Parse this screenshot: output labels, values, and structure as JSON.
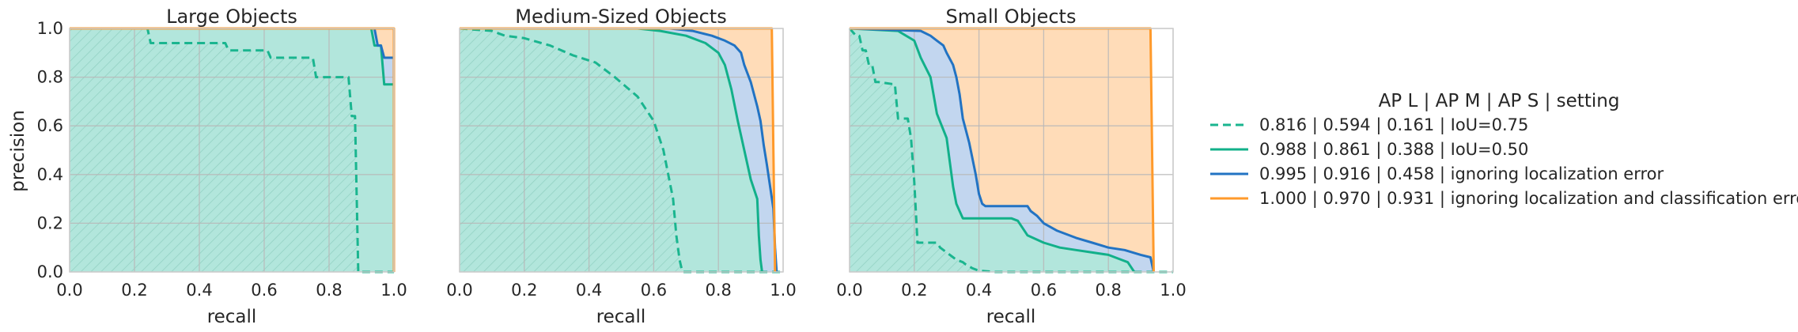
{
  "colors": {
    "iou75": "#1ab58f",
    "iou50": "#12b08a",
    "ign_loc": "#2273c3",
    "ign_loc_cls": "#ff9a2b",
    "fill_teal": "#b2e6dc",
    "fill_blue": "#c2d6ef",
    "fill_orange": "#ffdcb8",
    "hatch": "#8fcfc0",
    "grid": "#b8b8b8",
    "frame": "#cccccc",
    "text": "#262626"
  },
  "legend": {
    "title": "AP L | AP M | AP S | setting",
    "placement": "right",
    "entries": [
      {
        "label": "0.816 | 0.594 | 0.161 | IoU=0.75",
        "color": "#1ab58f",
        "style": "dashed"
      },
      {
        "label": "0.988 | 0.861 | 0.388 | IoU=0.50",
        "color": "#12b08a",
        "style": "solid"
      },
      {
        "label": "0.995 | 0.916 | 0.458 | ignoring localization error",
        "color": "#2273c3",
        "style": "solid"
      },
      {
        "label": "1.000 | 0.970 | 0.931 | ignoring localization and classification error",
        "color": "#ff9a2b",
        "style": "solid"
      }
    ]
  },
  "chart_data": [
    {
      "type": "area",
      "title": "Large Objects",
      "xlabel": "recall",
      "ylabel": "precision",
      "xlim": [
        0,
        1
      ],
      "ylim": [
        0,
        1
      ],
      "xticks": [
        "0.0",
        "0.2",
        "0.4",
        "0.6",
        "0.8",
        "1.0"
      ],
      "yticks": [
        "0.0",
        "0.2",
        "0.4",
        "0.6",
        "0.8",
        "1.0"
      ],
      "grid": true,
      "series": [
        {
          "name": "IoU=0.75",
          "style": "dashed",
          "x": [
            0.0,
            0.24,
            0.25,
            0.48,
            0.49,
            0.61,
            0.62,
            0.75,
            0.76,
            0.86,
            0.87,
            0.88,
            0.89,
            0.9,
            1.0
          ],
          "y": [
            1.0,
            1.0,
            0.94,
            0.94,
            0.91,
            0.91,
            0.88,
            0.88,
            0.8,
            0.8,
            0.64,
            0.64,
            0.0,
            0.0,
            0.0
          ]
        },
        {
          "name": "IoU=0.50",
          "style": "solid",
          "x": [
            0.0,
            0.93,
            0.94,
            0.96,
            0.97,
            1.0
          ],
          "y": [
            1.0,
            1.0,
            0.93,
            0.93,
            0.77,
            0.77
          ]
        },
        {
          "name": "ignoring localization error",
          "style": "solid",
          "x": [
            0.0,
            0.94,
            0.95,
            0.96,
            0.97,
            1.0
          ],
          "y": [
            1.0,
            1.0,
            0.93,
            0.93,
            0.88,
            0.88
          ]
        },
        {
          "name": "ignoring localization and classification error",
          "style": "solid",
          "x": [
            0.0,
            1.0,
            1.0
          ],
          "y": [
            1.0,
            1.0,
            0.0
          ]
        }
      ]
    },
    {
      "type": "area",
      "title": "Medium-Sized Objects",
      "xlabel": "recall",
      "ylabel": "",
      "xlim": [
        0,
        1
      ],
      "ylim": [
        0,
        1
      ],
      "xticks": [
        "0.0",
        "0.2",
        "0.4",
        "0.6",
        "0.8",
        "1.0"
      ],
      "yticks": [],
      "grid": true,
      "series": [
        {
          "name": "IoU=0.75",
          "style": "dashed",
          "x": [
            0.0,
            0.1,
            0.14,
            0.2,
            0.28,
            0.35,
            0.42,
            0.48,
            0.55,
            0.6,
            0.63,
            0.66,
            0.67,
            0.68,
            0.685,
            0.69,
            0.7,
            1.0
          ],
          "y": [
            1.0,
            0.99,
            0.97,
            0.96,
            0.93,
            0.89,
            0.86,
            0.8,
            0.72,
            0.62,
            0.5,
            0.3,
            0.15,
            0.05,
            0.02,
            0.0,
            0.0,
            0.0
          ]
        },
        {
          "name": "IoU=0.50",
          "style": "solid",
          "x": [
            0.0,
            0.55,
            0.62,
            0.7,
            0.76,
            0.8,
            0.82,
            0.84,
            0.86,
            0.88,
            0.9,
            0.92,
            0.925,
            0.93,
            0.935
          ],
          "y": [
            1.0,
            1.0,
            0.99,
            0.97,
            0.94,
            0.9,
            0.85,
            0.75,
            0.62,
            0.5,
            0.38,
            0.3,
            0.15,
            0.05,
            0.0
          ]
        },
        {
          "name": "ignoring localization error",
          "style": "solid",
          "x": [
            0.0,
            0.65,
            0.72,
            0.78,
            0.82,
            0.85,
            0.87,
            0.88,
            0.9,
            0.92,
            0.93,
            0.94,
            0.95,
            0.96,
            0.97,
            0.975,
            0.98
          ],
          "y": [
            1.0,
            1.0,
            0.99,
            0.97,
            0.95,
            0.93,
            0.9,
            0.85,
            0.78,
            0.68,
            0.62,
            0.52,
            0.44,
            0.35,
            0.26,
            0.1,
            0.0
          ]
        },
        {
          "name": "ignoring localization and classification error",
          "style": "solid",
          "x": [
            0.0,
            0.965,
            0.97,
            0.975
          ],
          "y": [
            1.0,
            1.0,
            0.5,
            0.0
          ]
        }
      ]
    },
    {
      "type": "area",
      "title": "Small Objects",
      "xlabel": "recall",
      "ylabel": "",
      "xlim": [
        0,
        1
      ],
      "ylim": [
        0,
        1
      ],
      "xticks": [
        "0.0",
        "0.2",
        "0.4",
        "0.6",
        "0.8",
        "1.0"
      ],
      "yticks": [],
      "grid": true,
      "series": [
        {
          "name": "IoU=0.75",
          "style": "dashed",
          "x": [
            0.0,
            0.02,
            0.03,
            0.04,
            0.05,
            0.06,
            0.07,
            0.08,
            0.09,
            0.14,
            0.15,
            0.18,
            0.19,
            0.2,
            0.21,
            0.27,
            0.28,
            0.3,
            0.32,
            0.33,
            0.35,
            0.36,
            0.38,
            0.4,
            0.45,
            1.0
          ],
          "y": [
            1.0,
            0.97,
            0.97,
            0.91,
            0.91,
            0.85,
            0.85,
            0.78,
            0.78,
            0.77,
            0.63,
            0.63,
            0.55,
            0.37,
            0.12,
            0.12,
            0.1,
            0.08,
            0.06,
            0.05,
            0.04,
            0.03,
            0.015,
            0.005,
            0.0,
            0.0
          ]
        },
        {
          "name": "IoU=0.50",
          "style": "solid",
          "x": [
            0.0,
            0.15,
            0.2,
            0.22,
            0.25,
            0.27,
            0.3,
            0.31,
            0.32,
            0.33,
            0.35,
            0.5,
            0.52,
            0.55,
            0.6,
            0.65,
            0.7,
            0.75,
            0.8,
            0.82,
            0.84,
            0.86,
            0.87,
            0.88
          ],
          "y": [
            1.0,
            0.99,
            0.95,
            0.88,
            0.8,
            0.65,
            0.55,
            0.45,
            0.35,
            0.28,
            0.22,
            0.22,
            0.21,
            0.15,
            0.12,
            0.1,
            0.09,
            0.08,
            0.07,
            0.06,
            0.05,
            0.04,
            0.02,
            0.0
          ]
        },
        {
          "name": "ignoring localization error",
          "style": "solid",
          "x": [
            0.0,
            0.22,
            0.25,
            0.27,
            0.29,
            0.3,
            0.32,
            0.33,
            0.34,
            0.35,
            0.37,
            0.39,
            0.4,
            0.41,
            0.42,
            0.55,
            0.56,
            0.58,
            0.6,
            0.64,
            0.7,
            0.75,
            0.8,
            0.85,
            0.9,
            0.93,
            0.94
          ],
          "y": [
            1.0,
            0.99,
            0.97,
            0.95,
            0.93,
            0.9,
            0.85,
            0.8,
            0.73,
            0.63,
            0.53,
            0.4,
            0.32,
            0.28,
            0.27,
            0.27,
            0.25,
            0.23,
            0.2,
            0.17,
            0.14,
            0.12,
            0.1,
            0.09,
            0.07,
            0.06,
            0.0
          ]
        },
        {
          "name": "ignoring localization and classification error",
          "style": "solid",
          "x": [
            0.0,
            0.93,
            0.94
          ],
          "y": [
            1.0,
            1.0,
            0.0
          ]
        }
      ]
    }
  ]
}
